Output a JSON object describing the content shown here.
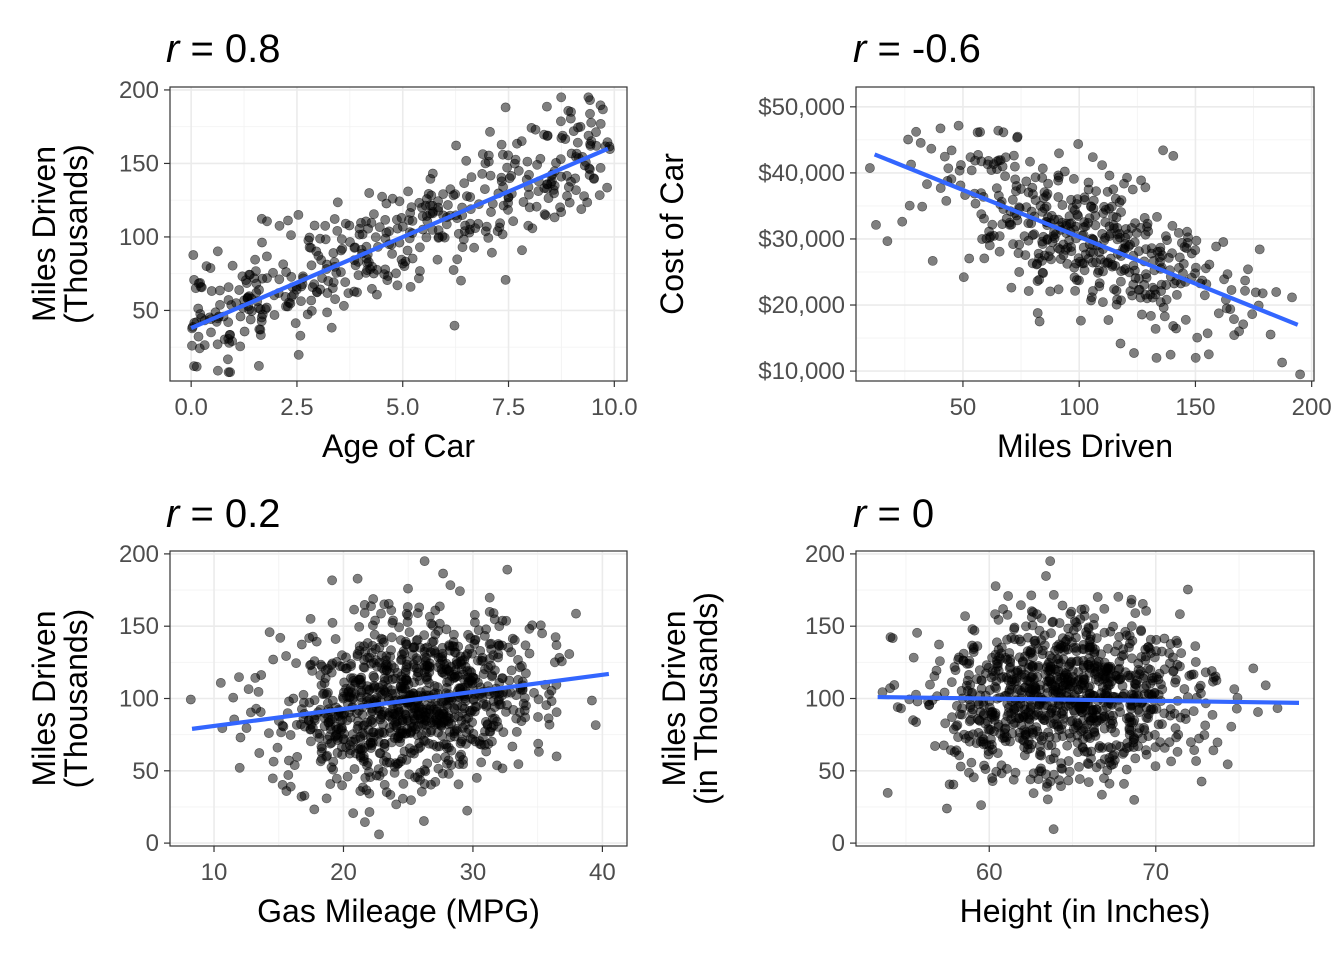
{
  "chart_data": [
    {
      "type": "scatter",
      "title_symbol": "r",
      "title_rest": " = 0.8",
      "xlabel": "Age of Car",
      "ylabel_lines": [
        "Miles Driven",
        "(Thousands)"
      ],
      "xlim": [
        -0.5,
        10.3
      ],
      "ylim": [
        2,
        202
      ],
      "xticks": [
        0,
        2.5,
        5,
        7.5,
        10
      ],
      "xtick_labels": [
        "0.0",
        "2.5",
        "5.0",
        "7.5",
        "10.0"
      ],
      "yticks": [
        50,
        100,
        150,
        200
      ],
      "ytick_labels": [
        "50",
        "100",
        "150",
        "200"
      ],
      "grid": true,
      "fit_line": {
        "x": [
          0,
          9.85
        ],
        "y": [
          38,
          160
        ],
        "color": "#3366FF"
      },
      "point_color": "#000000",
      "points": {
        "n": 450,
        "x_min": 0,
        "x_max": 9.9,
        "intercept": 38,
        "slope": 12.4,
        "sd": 20,
        "y_min": 8,
        "y_max": 195,
        "seed": 11
      }
    },
    {
      "type": "scatter",
      "title_symbol": "r",
      "title_rest": " = -0.6",
      "xlabel": "Miles Driven",
      "ylabel_lines": [
        "Cost of Car"
      ],
      "xlim": [
        4,
        201
      ],
      "ylim": [
        8500,
        53000
      ],
      "xticks": [
        50,
        100,
        150,
        200
      ],
      "xtick_labels": [
        "50",
        "100",
        "150",
        "200"
      ],
      "yticks": [
        10000,
        20000,
        30000,
        40000,
        50000
      ],
      "ytick_labels": [
        "$10,000",
        "$20,000",
        "$30,000",
        "$40,000",
        "$50,000"
      ],
      "grid": true,
      "fit_line": {
        "x": [
          12,
          194
        ],
        "y": [
          42800,
          17000
        ],
        "color": "#3366FF"
      },
      "point_color": "#000000",
      "points": {
        "n": 450,
        "x_mean": 100,
        "x_sd": 32,
        "x_min": 10,
        "x_max": 195,
        "intercept": 44500,
        "slope": -142,
        "sd": 5500,
        "y_min": 9500,
        "y_max": 51500,
        "seed": 23
      }
    },
    {
      "type": "scatter",
      "title_symbol": "r",
      "title_rest": " = 0.2",
      "xlabel": "Gas Mileage (MPG)",
      "ylabel_lines": [
        "Miles Driven",
        "(Thousands)"
      ],
      "xlim": [
        6.6,
        41.9
      ],
      "ylim": [
        -2,
        202
      ],
      "xticks": [
        10,
        20,
        30,
        40
      ],
      "xtick_labels": [
        "10",
        "20",
        "30",
        "40"
      ],
      "yticks": [
        0,
        50,
        100,
        150,
        200
      ],
      "ytick_labels": [
        "0",
        "50",
        "100",
        "150",
        "200"
      ],
      "grid": true,
      "fit_line": {
        "x": [
          8.3,
          40.5
        ],
        "y": [
          79,
          117
        ],
        "color": "#3366FF"
      },
      "point_color": "#000000",
      "points": {
        "n": 1000,
        "x_mean": 25,
        "x_sd": 5,
        "x_min": 8.2,
        "x_max": 40.5,
        "intercept": 69,
        "slope": 1.19,
        "sd": 29,
        "y_min": 6,
        "y_max": 195,
        "seed": 37
      }
    },
    {
      "type": "scatter",
      "title_symbol": "r",
      "title_rest": " = 0",
      "xlabel": "Height (in Inches)",
      "ylabel_lines": [
        "Miles Driven",
        "(in Thousands)"
      ],
      "xlim": [
        52,
        79.5
      ],
      "ylim": [
        -2,
        202
      ],
      "xticks": [
        60,
        70
      ],
      "xtick_labels": [
        "60",
        "70"
      ],
      "yticks": [
        0,
        50,
        100,
        150,
        200
      ],
      "ytick_labels": [
        "0",
        "50",
        "100",
        "150",
        "200"
      ],
      "grid": true,
      "fit_line": {
        "x": [
          53.3,
          78.6
        ],
        "y": [
          101,
          97
        ],
        "color": "#3366FF"
      },
      "point_color": "#000000",
      "points": {
        "n": 1000,
        "x_mean": 64.5,
        "x_sd": 4,
        "x_min": 53,
        "x_max": 79,
        "intercept": 110,
        "slope": -0.16,
        "sd": 29,
        "y_min": 7,
        "y_max": 195,
        "seed": 51
      }
    }
  ]
}
